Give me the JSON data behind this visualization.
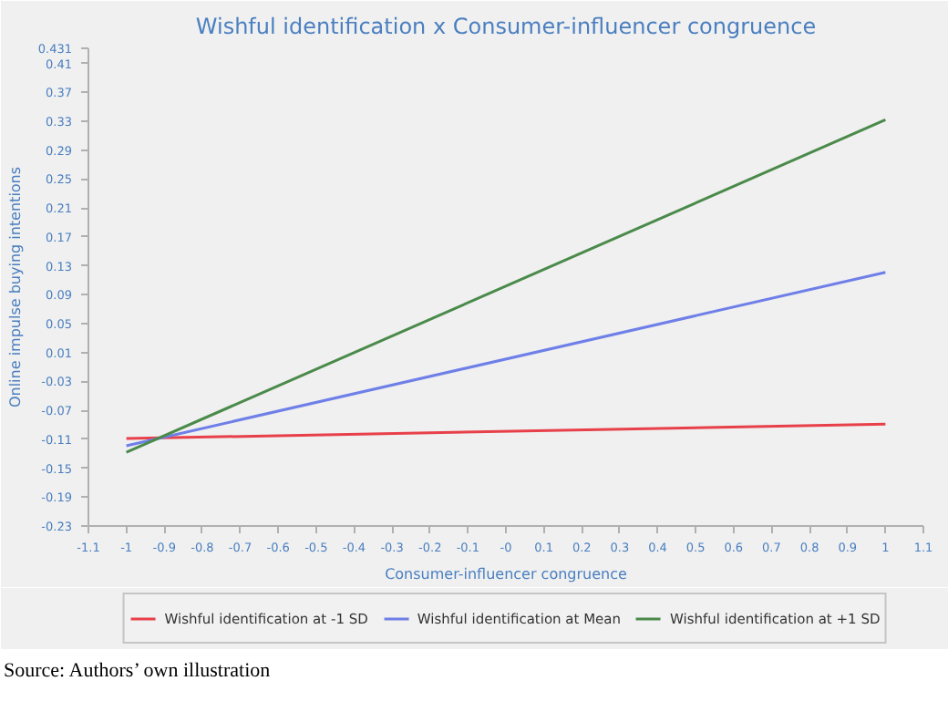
{
  "chart_data": {
    "type": "line",
    "title": "Wishful identification x Consumer-influencer congruence",
    "xlabel": "Consumer-influencer congruence",
    "ylabel": "Online impulse buying intentions",
    "x": [
      -1,
      1
    ],
    "series": [
      {
        "name": "Wishful identification at -1 SD",
        "color": "#e8404a",
        "values": [
          -0.109,
          -0.089
        ]
      },
      {
        "name": "Wishful identification at Mean",
        "color": "#6e7fe8",
        "values": [
          -0.119,
          0.121
        ]
      },
      {
        "name": "Wishful identification at +1 SD",
        "color": "#4a8a4a",
        "values": [
          -0.128,
          0.332
        ]
      }
    ],
    "xlim": [
      -1.1,
      1.1
    ],
    "xticks": [
      -1.1,
      -1,
      -0.9,
      -0.8,
      -0.7,
      -0.6,
      -0.5,
      -0.4,
      -0.3,
      -0.2,
      -0.1,
      {
        "value": 0,
        "label": "-0"
      },
      0.1,
      0.2,
      0.3,
      0.4,
      0.5,
      0.6,
      0.7,
      0.8,
      0.9,
      1,
      1.1
    ],
    "ylim": [
      -0.23,
      0.431
    ],
    "yticks": [
      -0.23,
      -0.19,
      -0.15,
      -0.11,
      -0.07,
      -0.03,
      0.01,
      0.05,
      0.09,
      0.13,
      0.17,
      0.21,
      0.25,
      0.29,
      0.33,
      0.37,
      0.41,
      0.431
    ],
    "grid": false,
    "legend": "bottom",
    "marker": "none",
    "line_style": "solid",
    "annotations": [
      "Source: Authors’ own illustration"
    ]
  }
}
